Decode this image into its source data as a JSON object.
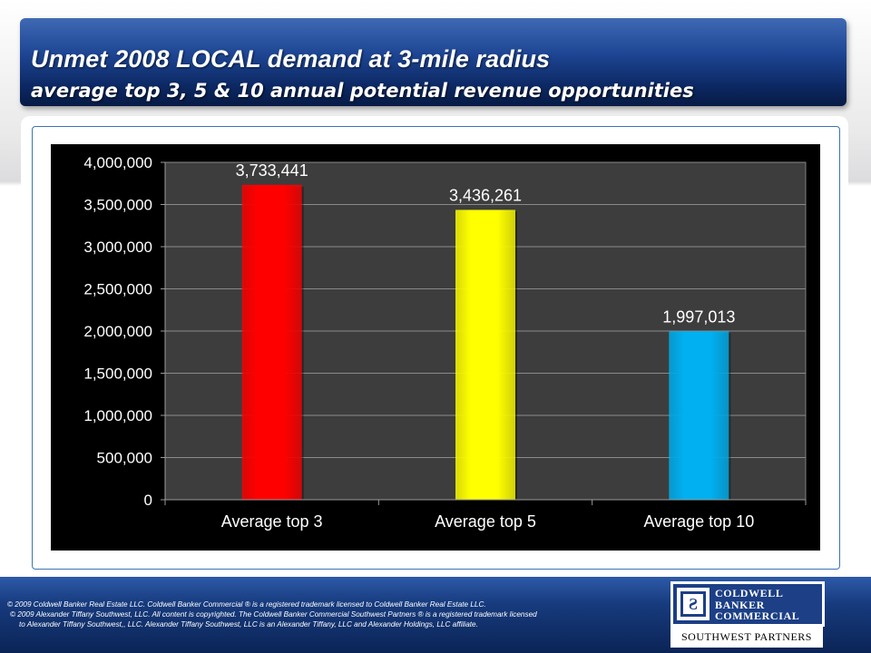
{
  "header": {
    "title": "Unmet 2008 LOCAL demand at 3-mile radius",
    "subtitle": "average top 3, 5 & 10 annual potential revenue opportunities"
  },
  "chart_data": {
    "type": "bar",
    "title": "",
    "xlabel": "",
    "ylabel": "",
    "categories": [
      "Average top 3",
      "Average top 5",
      "Average top 10"
    ],
    "values": [
      3733441,
      3436261,
      1997013
    ],
    "data_labels": [
      "3,733,441",
      "3,436,261",
      "1,997,013"
    ],
    "bar_colors": [
      "#ff0000",
      "#ffff00",
      "#00b0f0"
    ],
    "ylim": [
      0,
      4000000
    ],
    "yticks": [
      0,
      500000,
      1000000,
      1500000,
      2000000,
      2500000,
      3000000,
      3500000,
      4000000
    ],
    "ytick_labels": [
      "0",
      "500,000",
      "1,000,000",
      "1,500,000",
      "2,000,000",
      "2,500,000",
      "3,000,000",
      "3,500,000",
      "4,000,000"
    ],
    "grid": true,
    "legend": "none"
  },
  "footer": {
    "legal_lines": [
      "© 2009 Coldwell Banker Real Estate LLC. Coldwell Banker Commercial ® is a registered trademark licensed to Coldwell Banker Real Estate LLC.",
      "© 2009 Alexander Tiffany Southwest, LLC. All content is copyrighted. The Coldwell Banker Commercial Southwest Partners ® is a registered trademark licensed",
      "to Alexander Tiffany Southwest,, LLC.  Alexander Tiffany Southwest, LLC is an Alexander Tiffany, LLC and Alexander Holdings, LLC affiliate."
    ],
    "logo_lines": [
      "COLDWELL",
      "BANKER",
      "COMMERCIAL"
    ],
    "partners": "SOUTHWEST PARTNERS"
  }
}
